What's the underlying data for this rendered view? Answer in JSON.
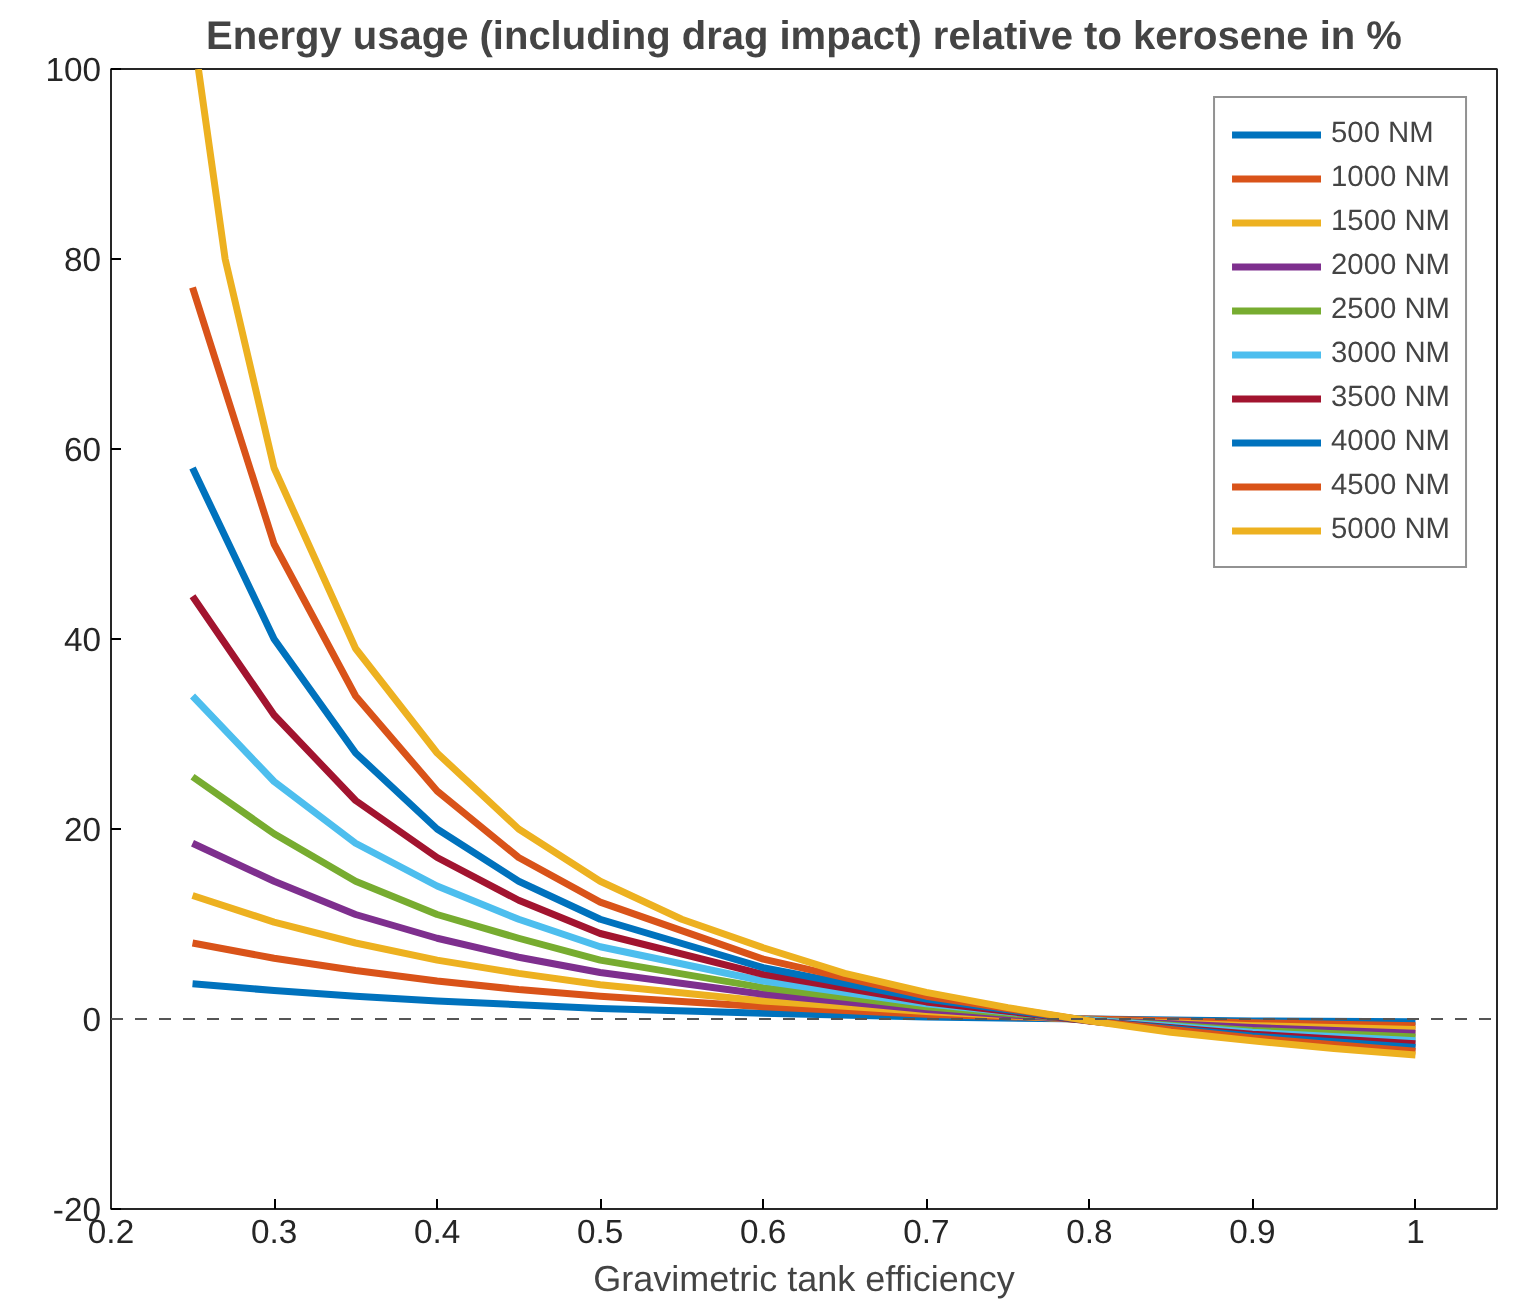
{
  "chart_data": {
    "type": "line",
    "title": "Energy usage (including drag impact) relative to kerosene in %",
    "xlabel": "Gravimetric tank efficiency",
    "x": [
      0.25,
      0.3,
      0.35,
      0.4,
      0.45,
      0.5,
      0.6,
      0.7,
      0.8,
      0.9,
      1.0
    ],
    "series": [
      {
        "name": "500 NM",
        "color": "#0072bd",
        "values": [
          3.7,
          3.0,
          2.4,
          1.9,
          1.5,
          1.1,
          0.6,
          0.2,
          0,
          -0.2,
          -0.3
        ]
      },
      {
        "name": "1000 NM",
        "color": "#d95319",
        "values": [
          8,
          6.4,
          5.1,
          4,
          3.1,
          2.4,
          1.3,
          0.5,
          0,
          -0.4,
          -0.7
        ]
      },
      {
        "name": "1500 NM",
        "color": "#edb120",
        "values": [
          13,
          10.2,
          8,
          6.2,
          4.8,
          3.6,
          1.9,
          0.8,
          -0.1,
          -0.7,
          -1.1
        ]
      },
      {
        "name": "2000 NM",
        "color": "#7e2f8e",
        "values": [
          18.5,
          14.5,
          11,
          8.5,
          6.5,
          4.9,
          2.6,
          1.0,
          -0.1,
          -0.9,
          -1.5
        ]
      },
      {
        "name": "2500 NM",
        "color": "#77ac30",
        "values": [
          25.5,
          19.5,
          14.5,
          11,
          8.5,
          6.2,
          3.3,
          1.3,
          -0.1,
          -1.2,
          -1.9
        ]
      },
      {
        "name": "3000 NM",
        "color": "#4dbeee",
        "values": [
          34,
          25,
          18.5,
          14,
          10.5,
          7.6,
          4.0,
          1.6,
          -0.1,
          -1.4,
          -2.3
        ]
      },
      {
        "name": "3500 NM",
        "color": "#a2142f",
        "values": [
          44.5,
          32,
          23,
          17,
          12.5,
          9,
          4.7,
          1.8,
          -0.2,
          -1.6,
          -2.6
        ]
      },
      {
        "name": "4000 NM",
        "color": "#0072bd",
        "values": [
          58,
          40,
          28,
          20,
          14.5,
          10.5,
          5.4,
          2.1,
          -0.2,
          -1.8,
          -3.0
        ]
      },
      {
        "name": "4500 NM",
        "color": "#d95319",
        "values": [
          77,
          50,
          34,
          24,
          17,
          12.3,
          6.3,
          2.4,
          -0.2,
          -2,
          -3.4
        ]
      },
      {
        "name": "5000 NM",
        "color": "#edb120",
        "x": [
          0.2536,
          0.27,
          0.3,
          0.35,
          0.4,
          0.45,
          0.5,
          0.55,
          0.6,
          0.65,
          0.7,
          0.75,
          0.8,
          0.85,
          0.9,
          0.95,
          1.0
        ],
        "values": [
          100,
          80,
          58,
          39,
          28,
          20,
          14.5,
          10.5,
          7.5,
          4.8,
          2.8,
          1.2,
          -0.2,
          -1.4,
          -2.3,
          -3.1,
          -3.8
        ]
      }
    ],
    "xlim": [
      0.2,
      1.05
    ],
    "ylim": [
      -20,
      100
    ],
    "xticks": [
      0.2,
      0.3,
      0.4,
      0.5,
      0.6,
      0.7,
      0.8,
      0.9,
      1
    ],
    "yticks": [
      -20,
      0,
      20,
      40,
      60,
      80,
      100
    ],
    "ref_lines": [
      {
        "axis": "y",
        "value": 0,
        "color": "#555555",
        "line_style": "dashed"
      }
    ],
    "legend": "top right",
    "grid": false,
    "marker": "none",
    "line_style": "solid"
  }
}
